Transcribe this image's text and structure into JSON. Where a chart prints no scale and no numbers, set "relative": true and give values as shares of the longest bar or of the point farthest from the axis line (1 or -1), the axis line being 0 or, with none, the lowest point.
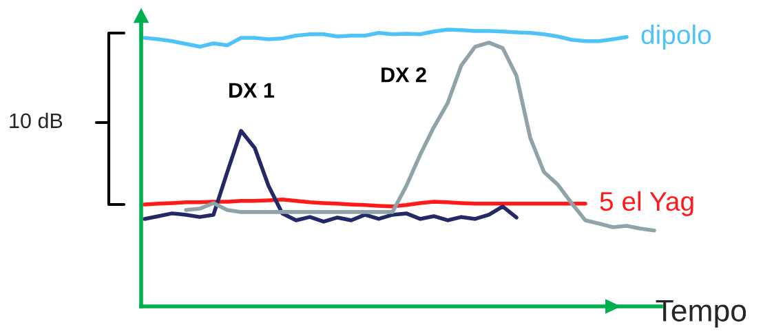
{
  "chart_data": {
    "type": "line",
    "relative": true,
    "xlabel": "Tempo",
    "grid": false,
    "legend": false,
    "annotations": [
      "10 dB"
    ],
    "categories": [
      null,
      null,
      null,
      null,
      null,
      null,
      null,
      null,
      null,
      null,
      null,
      null,
      null,
      null,
      null,
      null,
      null,
      null,
      null,
      null,
      null,
      null,
      null,
      null,
      null,
      null,
      null,
      null,
      null,
      null,
      null,
      null,
      null,
      null,
      null,
      null,
      null,
      null
    ],
    "series": [
      {
        "name": "dipolo",
        "color": "#4fc3f7",
        "values": [
          0.97,
          0.965,
          0.958,
          0.948,
          0.938,
          0.95,
          0.943,
          0.97,
          0.97,
          0.965,
          0.968,
          0.978,
          0.983,
          0.983,
          0.975,
          0.978,
          0.978,
          0.988,
          0.983,
          0.985,
          0.983,
          0.993,
          1.0,
          0.998,
          0.995,
          0.995,
          0.993,
          0.99,
          0.988,
          0.983,
          0.975,
          0.963,
          0.958,
          0.958,
          0.965,
          0.973,
          null,
          null
        ]
      },
      {
        "name": "5 el Yag",
        "color": "#ff1a1a",
        "values": [
          0.368,
          0.371,
          0.373,
          0.376,
          0.376,
          0.378,
          0.378,
          0.381,
          0.381,
          0.383,
          0.386,
          0.381,
          0.376,
          0.373,
          0.371,
          0.368,
          0.366,
          0.363,
          0.361,
          0.366,
          0.373,
          0.378,
          0.376,
          0.373,
          0.371,
          0.371,
          0.371,
          0.371,
          0.371,
          0.371,
          0.371,
          0.371,
          0.371,
          null,
          null,
          null,
          null,
          null
        ]
      },
      {
        "name": "DX 1",
        "color": "#232866",
        "values": [
          0.316,
          0.326,
          0.336,
          0.331,
          0.323,
          0.331,
          0.485,
          0.634,
          0.572,
          0.435,
          0.336,
          0.311,
          0.323,
          0.306,
          0.321,
          0.311,
          0.331,
          0.316,
          0.331,
          0.336,
          0.316,
          0.326,
          0.311,
          0.323,
          0.316,
          0.331,
          0.361,
          0.321,
          null,
          null,
          null,
          null,
          null,
          null,
          null,
          null,
          null,
          null
        ]
      },
      {
        "name": "DX 2",
        "color": "#8fa3a8",
        "values": [
          null,
          null,
          null,
          0.348,
          0.353,
          0.373,
          0.348,
          0.341,
          0.341,
          0.341,
          0.341,
          0.341,
          0.341,
          0.341,
          0.341,
          0.341,
          0.341,
          0.341,
          0.341,
          0.435,
          0.547,
          0.647,
          0.734,
          0.871,
          0.938,
          0.953,
          0.933,
          0.833,
          0.609,
          0.485,
          0.44,
          0.373,
          0.311,
          0.299,
          0.286,
          0.291,
          0.281,
          0.274
        ]
      }
    ]
  }
}
